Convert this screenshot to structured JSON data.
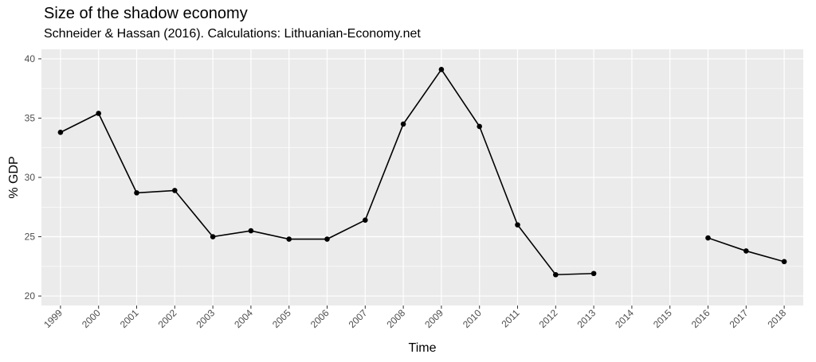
{
  "chart_data": {
    "type": "line",
    "title": "Size of the shadow economy",
    "subtitle": "Schneider & Hassan (2016). Calculations: Lithuanian-Economy.net",
    "xlabel": "Time",
    "ylabel": "% GDP",
    "categories": [
      "1999",
      "2000",
      "2001",
      "2002",
      "2003",
      "2004",
      "2005",
      "2006",
      "2007",
      "2008",
      "2009",
      "2010",
      "2011",
      "2012",
      "2013",
      "2014",
      "2015",
      "2016",
      "2017",
      "2018"
    ],
    "series": [
      {
        "values": [
          33.8,
          35.4,
          28.7,
          28.9,
          25.0,
          25.5,
          24.8,
          24.8,
          26.4,
          34.5,
          39.1,
          34.3,
          26.0,
          21.8,
          21.9,
          null,
          null,
          24.9,
          23.8,
          22.9
        ]
      }
    ],
    "ylim": [
      19.2,
      40.8
    ],
    "yticks": [
      20,
      25,
      30,
      35,
      40
    ],
    "grid": true,
    "colors": {
      "panel": "#ebebeb",
      "grid": "#ffffff",
      "line": "#000000"
    }
  }
}
